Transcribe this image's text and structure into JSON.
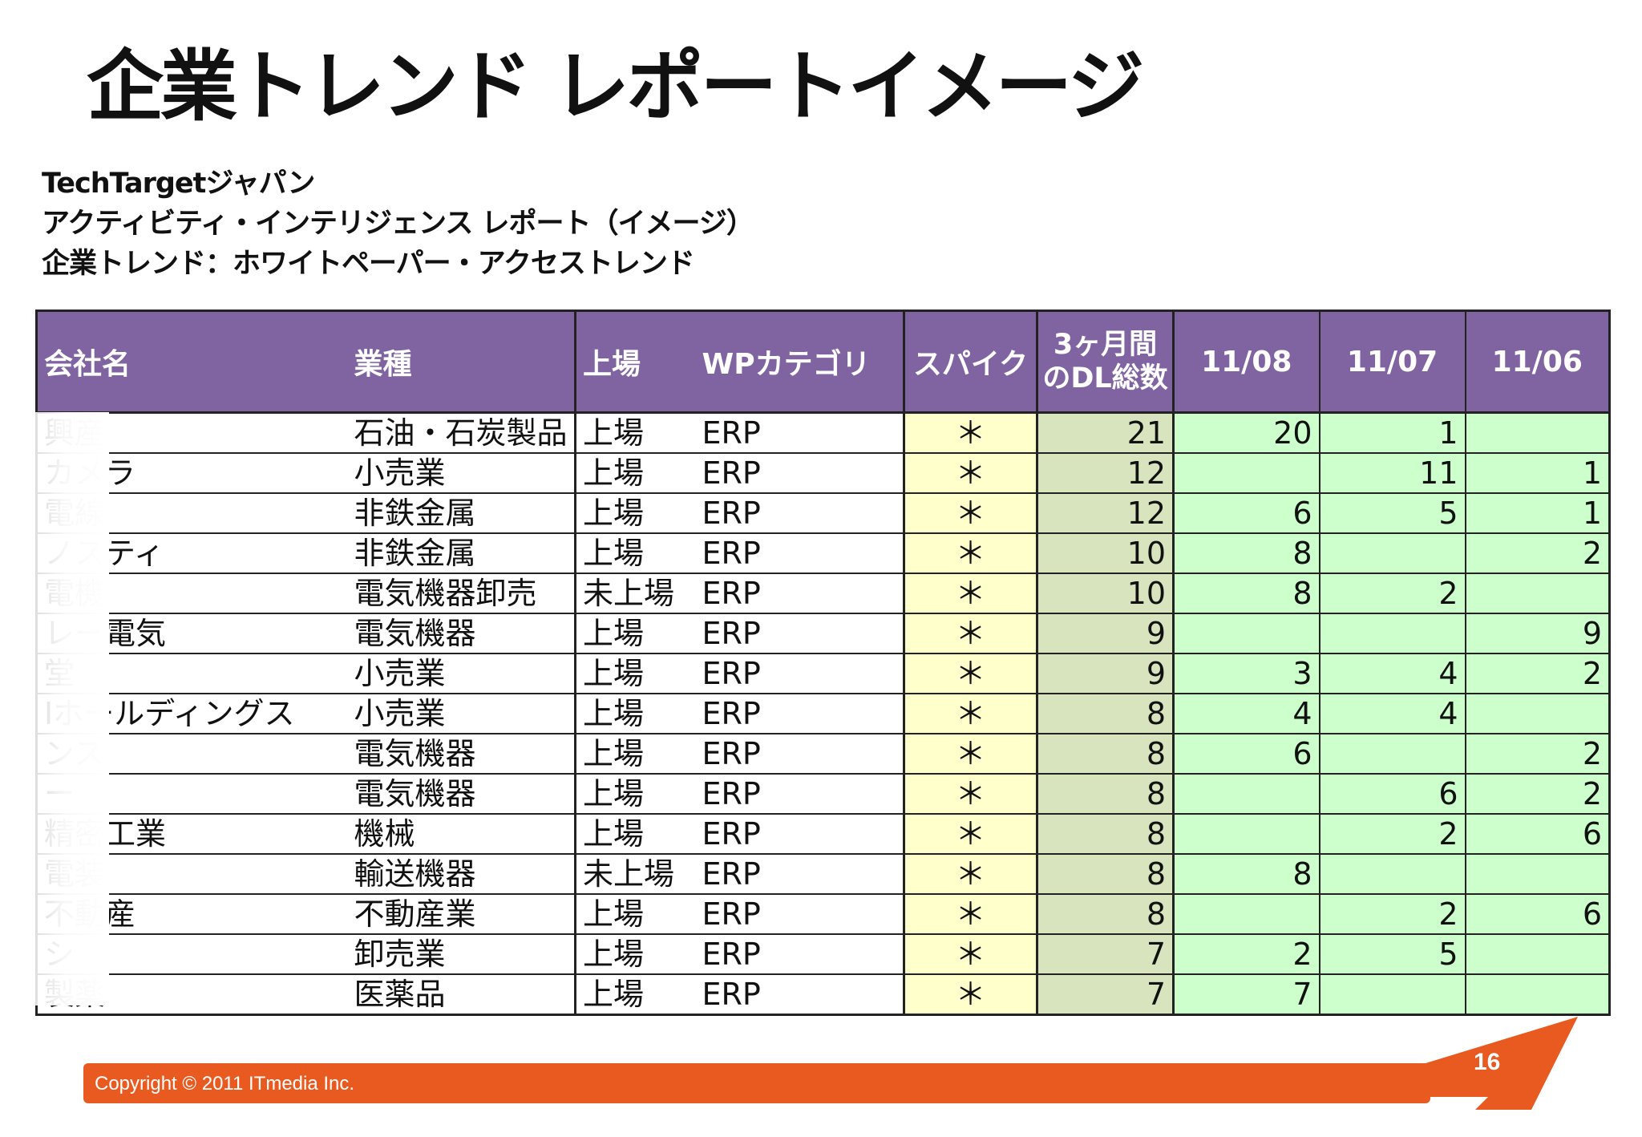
{
  "title": "企業トレンド レポートイメージ",
  "subtitle_lines": [
    "TechTargetジャパン",
    "アクティビティ・インテリジェンス レポート（イメージ）",
    "企業トレンド：ホワイトペーパー・アクセストレンド"
  ],
  "table": {
    "headers": {
      "company": "会社名",
      "industry": "業種",
      "listing": "上場",
      "category": "WPカテゴリ",
      "spike": "スパイク",
      "dl_total": "3ヶ月間のDL総数",
      "m1": "11/08",
      "m2": "11/07",
      "m3": "11/06"
    },
    "rows": [
      {
        "company": "興産",
        "industry": "石油・石炭製品",
        "listing": "上場",
        "category": "ERP",
        "spike": "＊",
        "dl_total": "21",
        "m1": "20",
        "m2": "1",
        "m3": ""
      },
      {
        "company": "カメラ",
        "industry": "小売業",
        "listing": "上場",
        "category": "ERP",
        "spike": "＊",
        "dl_total": "12",
        "m1": "",
        "m2": "11",
        "m3": "1"
      },
      {
        "company": "電線",
        "industry": "非鉄金属",
        "listing": "上場",
        "category": "ERP",
        "spike": "＊",
        "dl_total": "12",
        "m1": "6",
        "m2": "5",
        "m3": "1"
      },
      {
        "company": "ノスティ",
        "industry": "非鉄金属",
        "listing": "上場",
        "category": "ERP",
        "spike": "＊",
        "dl_total": "10",
        "m1": "8",
        "m2": "",
        "m3": "2"
      },
      {
        "company": "電機",
        "industry": "電気機器卸売",
        "listing": "未上場",
        "category": "ERP",
        "spike": "＊",
        "dl_total": "10",
        "m1": "8",
        "m2": "2",
        "m3": ""
      },
      {
        "company": "レー電気",
        "industry": "電気機器",
        "listing": "上場",
        "category": "ERP",
        "spike": "＊",
        "dl_total": "9",
        "m1": "",
        "m2": "",
        "m3": "9"
      },
      {
        "company": "堂",
        "industry": "小売業",
        "listing": "上場",
        "category": "ERP",
        "spike": "＊",
        "dl_total": "9",
        "m1": "3",
        "m2": "4",
        "m3": "2"
      },
      {
        "company": "Iホールディングス",
        "industry": "小売業",
        "listing": "上場",
        "category": "ERP",
        "spike": "＊",
        "dl_total": "8",
        "m1": "4",
        "m2": "4",
        "m3": ""
      },
      {
        "company": "ンス",
        "industry": "電気機器",
        "listing": "上場",
        "category": "ERP",
        "spike": "＊",
        "dl_total": "8",
        "m1": "6",
        "m2": "",
        "m3": "2"
      },
      {
        "company": "ー",
        "industry": "電気機器",
        "listing": "上場",
        "category": "ERP",
        "spike": "＊",
        "dl_total": "8",
        "m1": "",
        "m2": "6",
        "m3": "2"
      },
      {
        "company": "精密工業",
        "industry": "機械",
        "listing": "上場",
        "category": "ERP",
        "spike": "＊",
        "dl_total": "8",
        "m1": "",
        "m2": "2",
        "m3": "6"
      },
      {
        "company": "電装",
        "industry": "輸送機器",
        "listing": "未上場",
        "category": "ERP",
        "spike": "＊",
        "dl_total": "8",
        "m1": "8",
        "m2": "",
        "m3": ""
      },
      {
        "company": "不動産",
        "industry": "不動産業",
        "listing": "上場",
        "category": "ERP",
        "spike": "＊",
        "dl_total": "8",
        "m1": "",
        "m2": "2",
        "m3": "6"
      },
      {
        "company": "シ",
        "industry": "卸売業",
        "listing": "上場",
        "category": "ERP",
        "spike": "＊",
        "dl_total": "7",
        "m1": "2",
        "m2": "5",
        "m3": ""
      },
      {
        "company": "製薬",
        "industry": "医薬品",
        "listing": "上場",
        "category": "ERP",
        "spike": "＊",
        "dl_total": "7",
        "m1": "7",
        "m2": "",
        "m3": ""
      }
    ]
  },
  "footer": {
    "copyright": "Copyright © 2011 ITmedia Inc.",
    "page_number": "16"
  }
}
